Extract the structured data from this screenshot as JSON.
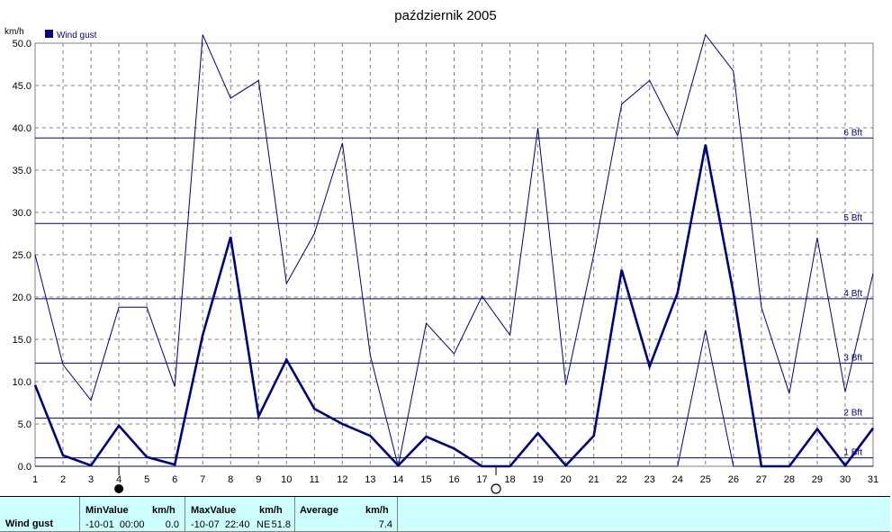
{
  "chart_data": {
    "type": "line",
    "title": "październik 2005",
    "ylabel": "km/h",
    "ylim": [
      0,
      50
    ],
    "yticks": [
      "0.0",
      "5.0",
      "10.0",
      "15.0",
      "20.0",
      "25.0",
      "30.0",
      "35.0",
      "40.0",
      "45.0",
      "50.0"
    ],
    "x": [
      1,
      2,
      3,
      4,
      5,
      6,
      7,
      8,
      9,
      10,
      11,
      12,
      13,
      14,
      15,
      16,
      17,
      18,
      19,
      20,
      21,
      22,
      23,
      24,
      25,
      26,
      27,
      28,
      29,
      30,
      31
    ],
    "legend": {
      "label": "Wind gust",
      "position": "top-left"
    },
    "grid": true,
    "series": [
      {
        "name": "Wind gust",
        "role": "average",
        "color": "#000080",
        "values": [
          9.6,
          1.3,
          0.1,
          4.8,
          1.1,
          0.2,
          15.5,
          27.1,
          5.9,
          12.6,
          6.8,
          5.0,
          3.6,
          0.1,
          3.5,
          2.1,
          0.0,
          0.0,
          3.9,
          0.1,
          3.6,
          23.2,
          11.8,
          20.5,
          38.0,
          20.5,
          0.0,
          0.0,
          4.4,
          0.1,
          4.5
        ]
      },
      {
        "name": "",
        "role": "max",
        "color": "#000080",
        "values": [
          25.0,
          12.0,
          7.8,
          18.8,
          18.8,
          9.4,
          51.0,
          43.5,
          45.6,
          21.6,
          27.5,
          38.2,
          13.1,
          0.0,
          16.9,
          13.3,
          20.1,
          15.5,
          40.0,
          9.6,
          25.0,
          42.8,
          45.6,
          39.1,
          51.0,
          46.7,
          18.8,
          8.6,
          27.0,
          8.8,
          22.8
        ]
      },
      {
        "name": "",
        "role": "min",
        "color": "#000080",
        "values": [
          0,
          0,
          0,
          0,
          0,
          0,
          0,
          0,
          0,
          0,
          0,
          0,
          0,
          0,
          0,
          0,
          0,
          0,
          0,
          0,
          0,
          0,
          0,
          0,
          16.1,
          0,
          0,
          0,
          0,
          0,
          0
        ]
      }
    ],
    "reference_lines": [
      {
        "value": 1.0,
        "label": "1 Bft"
      },
      {
        "value": 5.7,
        "label": "2 Bft"
      },
      {
        "value": 12.2,
        "label": "3 Bft"
      },
      {
        "value": 19.8,
        "label": "4 Bft"
      },
      {
        "value": 28.7,
        "label": "5 Bft"
      },
      {
        "value": 38.8,
        "label": "6 Bft"
      }
    ],
    "markers": [
      {
        "day": 4,
        "type": "full-moon"
      },
      {
        "day": 17.5,
        "type": "new-moon"
      }
    ]
  },
  "stats": {
    "row_label": "Wind gust",
    "min": {
      "header": "MinValue",
      "unit": "km/h",
      "datetime": "-10-01  00:00",
      "value": "0.0"
    },
    "max": {
      "header": "MaxValue",
      "unit": "km/h",
      "datetime": "-10-07  22:40",
      "dir": "NE",
      "value": "51.8"
    },
    "avg": {
      "header": "Average",
      "unit": "km/h",
      "value": "7.4"
    }
  }
}
